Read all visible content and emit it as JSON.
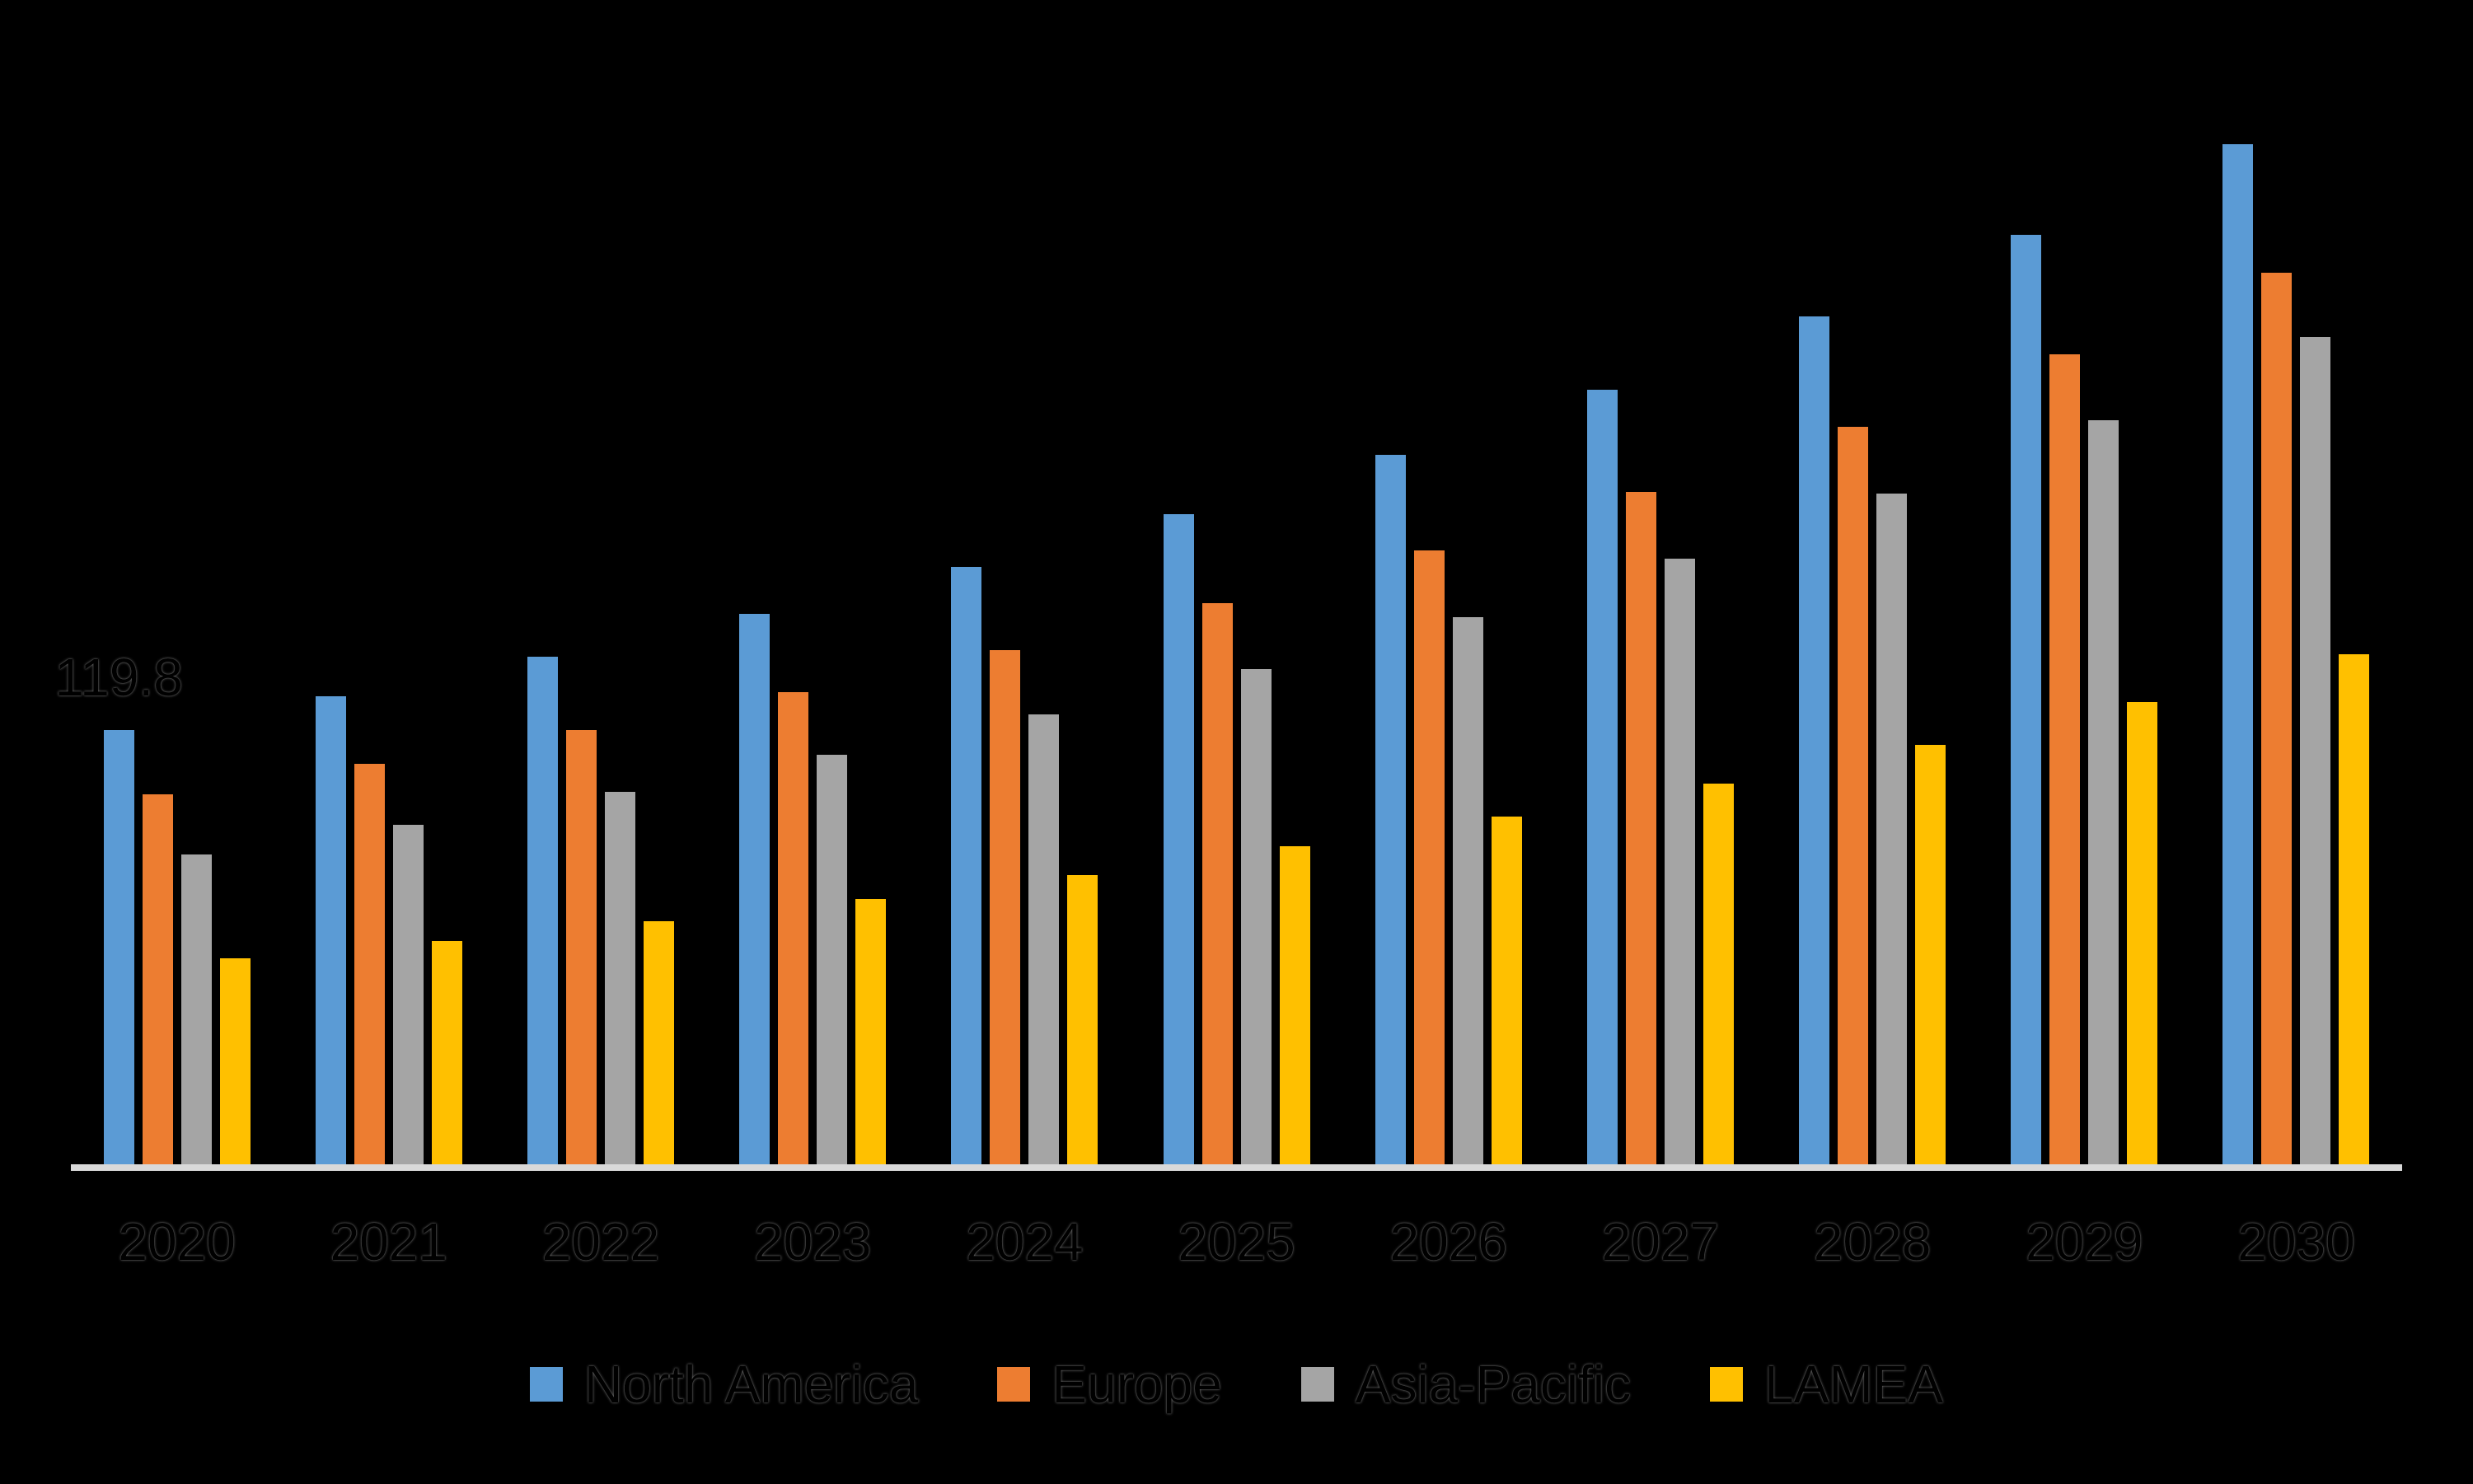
{
  "chart": {
    "background_color": "#000000",
    "axis_line_color": "#D9D9D9",
    "text_color": "#000000"
  },
  "chart_data": {
    "type": "bar",
    "title": "",
    "xlabel": "",
    "ylabel": "",
    "categories": [
      "2020",
      "2021",
      "2022",
      "2023",
      "2024",
      "2025",
      "2026",
      "2027",
      "2028",
      "2029",
      "2030"
    ],
    "series": [
      {
        "name": "North America",
        "color": "#5B9BD5",
        "values": [
          119.8,
          129.1,
          140.0,
          151.9,
          164.8,
          179.4,
          195.7,
          213.7,
          233.9,
          256.4,
          281.4
        ]
      },
      {
        "name": "Europe",
        "color": "#ED7D31",
        "values": [
          102.1,
          110.5,
          119.8,
          130.3,
          141.8,
          154.8,
          169.4,
          185.5,
          203.5,
          223.5,
          246.0
        ]
      },
      {
        "name": "Asia-Pacific",
        "color": "#A5A5A5",
        "values": [
          85.5,
          93.7,
          102.7,
          113.0,
          124.1,
          136.6,
          150.9,
          167.1,
          185.0,
          205.3,
          228.2
        ]
      },
      {
        "name": "LAMEA",
        "color": "#FFC000",
        "values": [
          56.8,
          61.6,
          67.1,
          73.2,
          79.8,
          87.7,
          95.9,
          105.0,
          115.7,
          127.5,
          140.7
        ]
      }
    ],
    "data_labels": [
      {
        "series": "North America",
        "category": "2020",
        "text": "119.8"
      }
    ],
    "ylim": [
      0,
      305
    ],
    "grid": false,
    "y_axis_ticks_visible": false,
    "legend_position": "bottom"
  }
}
